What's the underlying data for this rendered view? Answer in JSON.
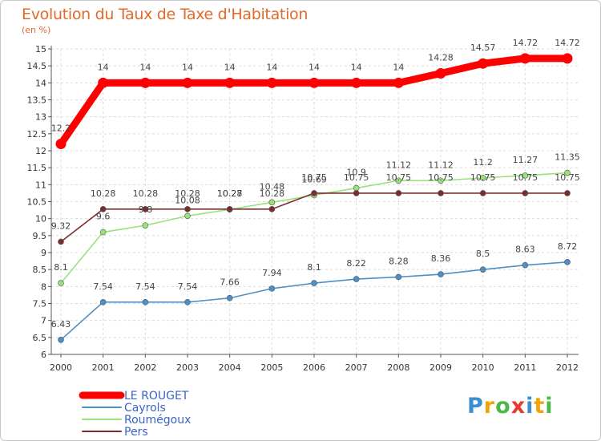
{
  "chart_data": {
    "type": "line",
    "title": "Evolution du Taux de Taxe d'Habitation",
    "ylabel": "(en %)",
    "x": [
      "2000",
      "2001",
      "2002",
      "2003",
      "2004",
      "2005",
      "2006",
      "2007",
      "2008",
      "2009",
      "2010",
      "2011",
      "2012"
    ],
    "ylim": [
      6,
      15
    ],
    "yticks": [
      "6",
      "6.5",
      "7",
      "7.5",
      "8",
      "8.5",
      "9",
      "9.5",
      "10",
      "10.5",
      "11",
      "11.5",
      "12",
      "12.5",
      "13",
      "13.5",
      "14",
      "14.5",
      "15"
    ],
    "grid": true,
    "legend_position": "bottom-left",
    "series": [
      {
        "name": "LE ROUGET",
        "color": "#ff0000",
        "values": [
          12.2,
          14,
          14,
          14,
          14,
          14,
          14,
          14,
          14,
          14.28,
          14.57,
          14.72,
          14.72
        ],
        "labels": [
          "12.2",
          "14",
          "14",
          "14",
          "14",
          "14",
          "14",
          "14",
          "14",
          "14.28",
          "14.57",
          "14.72",
          "14.72"
        ]
      },
      {
        "name": "Cayrols",
        "color": "#4e8fc6",
        "values": [
          6.43,
          7.54,
          7.54,
          7.54,
          7.66,
          7.94,
          8.1,
          8.22,
          8.28,
          8.36,
          8.5,
          8.63,
          8.72
        ],
        "labels": [
          "6.43",
          "7.54",
          "7.54",
          "7.54",
          "7.66",
          "7.94",
          "8.1",
          "8.22",
          "8.28",
          "8.36",
          "8.5",
          "8.63",
          "8.72"
        ]
      },
      {
        "name": "Roumégoux",
        "color": "#99e27a",
        "values": [
          8.1,
          9.6,
          9.8,
          10.08,
          10.27,
          10.48,
          10.69,
          10.9,
          11.12,
          11.12,
          11.2,
          11.27,
          11.35
        ],
        "labels": [
          "8.1",
          "9.6",
          "9.8",
          "10.08",
          "10.27",
          "10.48",
          "10.69",
          "10.9",
          "11.12",
          "11.12",
          "11.2",
          "11.27",
          "11.35"
        ]
      },
      {
        "name": "Pers",
        "color": "#7b2d2d",
        "values": [
          9.32,
          10.28,
          10.28,
          10.28,
          10.28,
          10.28,
          10.75,
          10.75,
          10.75,
          10.75,
          10.75,
          10.75,
          10.75
        ],
        "labels": [
          "9.32",
          "10.28",
          "10.28",
          "10.28",
          "10.28",
          "10.28",
          "10.75",
          "10.75",
          "10.75",
          "10.75",
          "10.75",
          "10.75",
          "10.75"
        ]
      }
    ]
  },
  "brand": {
    "logo_letters": [
      "P",
      "r",
      "o",
      "x",
      "i",
      "t",
      "i"
    ],
    "logo_colors": [
      "#3b8fd1",
      "#f0a30a",
      "#4db848",
      "#e53b2c",
      "#3b8fd1",
      "#f0a30a",
      "#4db848"
    ]
  }
}
